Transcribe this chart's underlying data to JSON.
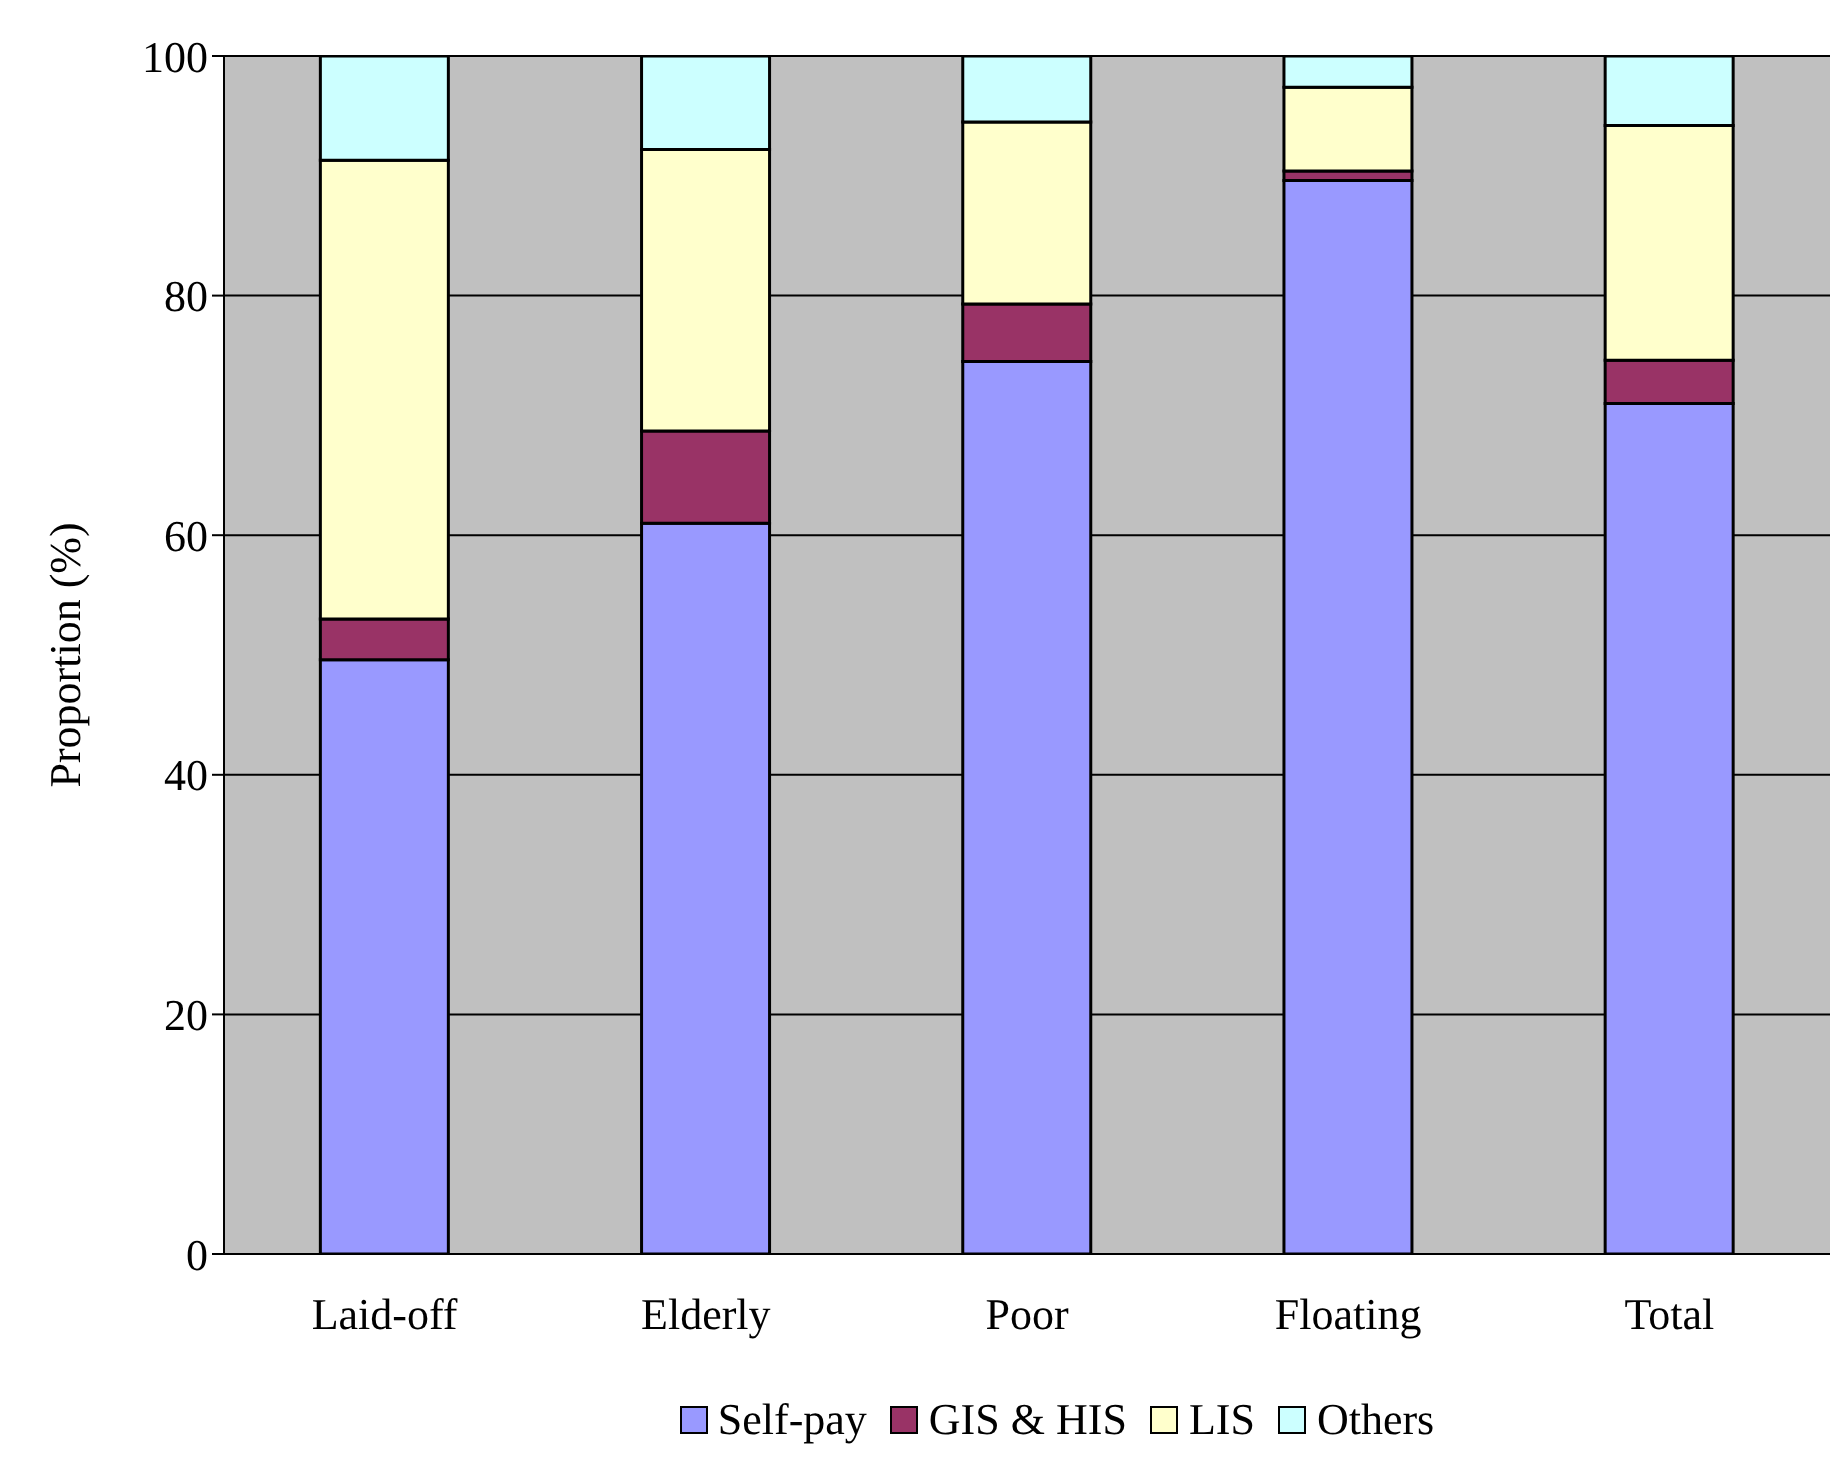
{
  "chart_data": {
    "type": "bar",
    "stacked": true,
    "ylabel": "Proportion (%)",
    "categories": [
      "Laid-off",
      "Elderly",
      "Poor",
      "Floating",
      "Total"
    ],
    "series": [
      {
        "name": "Self-pay",
        "color": "#9999ff",
        "values": [
          49.6,
          61.0,
          74.5,
          89.6,
          71.0
        ]
      },
      {
        "name": "GIS & HIS",
        "color": "#993366",
        "values": [
          3.4,
          7.7,
          4.8,
          0.8,
          3.6
        ]
      },
      {
        "name": "LIS",
        "color": "#ffffcc",
        "values": [
          38.3,
          23.5,
          15.2,
          7.0,
          19.6
        ]
      },
      {
        "name": "Others",
        "color": "#ccffff",
        "values": [
          8.7,
          7.8,
          5.5,
          2.6,
          5.8
        ]
      }
    ],
    "ylim": [
      0,
      100
    ],
    "yticks": [
      0,
      20,
      40,
      60,
      80,
      100
    ],
    "grid": "y",
    "legend": "bottom"
  }
}
